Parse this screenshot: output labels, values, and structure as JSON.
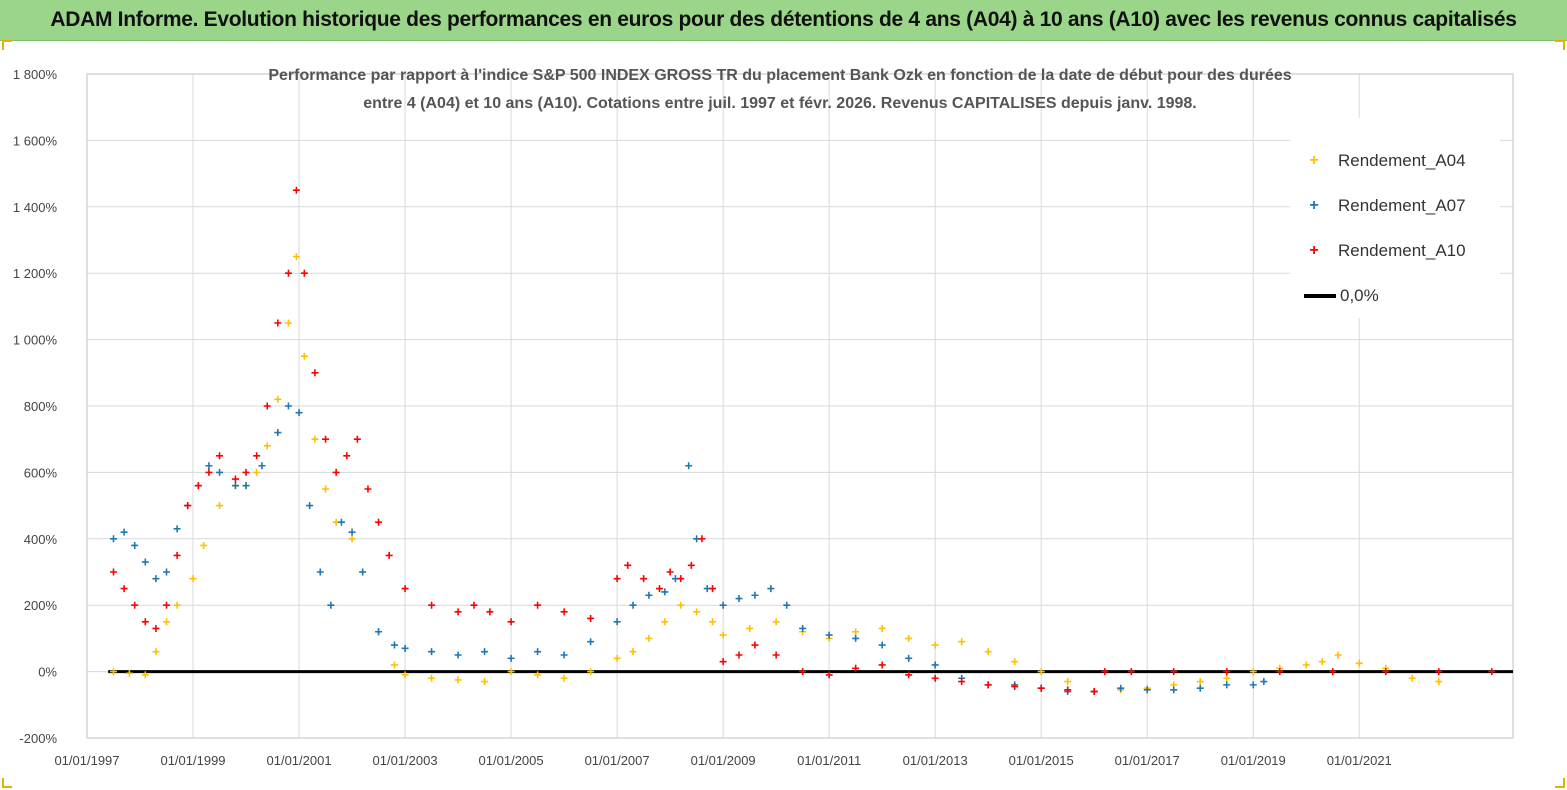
{
  "header": {
    "banner_title": "ADAM Informe. Evolution historique des performances en euros pour des détentions de 4 ans (A04) à 10 ans (A10) avec les revenus connus capitalisés"
  },
  "colors": {
    "banner": "#9bd58a",
    "A04": "#ffc000",
    "A07": "#1f77b4",
    "A10": "#ff0000",
    "zero_line": "#000000",
    "grid": "#d9d9d9"
  },
  "chart_data": {
    "type": "scatter",
    "title_line1": "Performance par rapport à l'indice S&P 500 INDEX GROSS TR  du placement Bank Ozk en fonction de la date de début pour des durées",
    "title_line2": "entre 4 (A04) et 10 ans (A10). Cotations entre juil. 1997 et févr. 2026. Revenus CAPITALISES depuis janv. 1998.",
    "xlabel": "",
    "ylabel": "",
    "ylim": [
      -200,
      1800
    ],
    "xlim": [
      1997.0,
      2023.9
    ],
    "y_ticks": [
      {
        "value": -200,
        "label": "-200%"
      },
      {
        "value": 0,
        "label": "0%"
      },
      {
        "value": 200,
        "label": "200%"
      },
      {
        "value": 400,
        "label": "400%"
      },
      {
        "value": 600,
        "label": "600%"
      },
      {
        "value": 800,
        "label": "800%"
      },
      {
        "value": 1000,
        "label": "1 000%"
      },
      {
        "value": 1200,
        "label": "1 200%"
      },
      {
        "value": 1400,
        "label": "1 400%"
      },
      {
        "value": 1600,
        "label": "1 600%"
      },
      {
        "value": 1800,
        "label": "1 800%"
      }
    ],
    "x_ticks": [
      {
        "value": 1997,
        "label": "01/01/1997"
      },
      {
        "value": 1999,
        "label": "01/01/1999"
      },
      {
        "value": 2001,
        "label": "01/01/2001"
      },
      {
        "value": 2003,
        "label": "01/01/2003"
      },
      {
        "value": 2005,
        "label": "01/01/2005"
      },
      {
        "value": 2007,
        "label": "01/01/2007"
      },
      {
        "value": 2009,
        "label": "01/01/2009"
      },
      {
        "value": 2011,
        "label": "01/01/2011"
      },
      {
        "value": 2013,
        "label": "01/01/2013"
      },
      {
        "value": 2015,
        "label": "01/01/2015"
      },
      {
        "value": 2017,
        "label": "01/01/2017"
      },
      {
        "value": 2019,
        "label": "01/01/2019"
      },
      {
        "value": 2021,
        "label": "01/01/2021"
      }
    ],
    "grid": true,
    "legend_position": "top-right",
    "series": [
      {
        "name": "Rendement_A04",
        "key": "A04",
        "x": [
          1997.5,
          1997.8,
          1998.1,
          1998.3,
          1998.5,
          1998.7,
          1999.0,
          1999.2,
          1999.5,
          1999.8,
          2000.0,
          2000.2,
          2000.4,
          2000.6,
          2000.8,
          2000.95,
          2001.1,
          2001.3,
          2001.5,
          2001.7,
          2002.0,
          2002.2,
          2002.5,
          2002.8,
          2003.0,
          2003.5,
          2004.0,
          2004.5,
          2005.0,
          2005.5,
          2006.0,
          2006.5,
          2007.0,
          2007.3,
          2007.6,
          2007.9,
          2008.2,
          2008.5,
          2008.8,
          2009.0,
          2009.5,
          2010.0,
          2010.5,
          2011.0,
          2011.5,
          2012.0,
          2012.5,
          2013.0,
          2013.5,
          2014.0,
          2014.5,
          2015.0,
          2015.5,
          2016.0,
          2016.5,
          2017.0,
          2017.5,
          2018.0,
          2018.5,
          2019.0,
          2019.5,
          2020.0,
          2020.3,
          2020.6,
          2021.0,
          2021.5,
          2022.0,
          2022.5
        ],
        "values": [
          0,
          -5,
          -10,
          60,
          150,
          200,
          280,
          380,
          500,
          560,
          560,
          600,
          680,
          820,
          1050,
          1250,
          950,
          700,
          550,
          450,
          400,
          300,
          120,
          20,
          -10,
          -20,
          -25,
          -30,
          0,
          -10,
          -20,
          0,
          40,
          60,
          100,
          150,
          200,
          180,
          150,
          110,
          130,
          150,
          120,
          100,
          120,
          130,
          100,
          80,
          90,
          60,
          30,
          0,
          -30,
          -60,
          -55,
          -50,
          -40,
          -30,
          -20,
          0,
          10,
          20,
          30,
          50,
          25,
          10,
          -20,
          -30
        ]
      },
      {
        "name": "Rendement_A07",
        "key": "A07",
        "x": [
          1997.5,
          1997.7,
          1997.9,
          1998.1,
          1998.3,
          1998.5,
          1998.7,
          1998.9,
          1999.1,
          1999.3,
          1999.5,
          1999.8,
          2000.0,
          2000.3,
          2000.6,
          2000.8,
          2001.0,
          2001.2,
          2001.4,
          2001.6,
          2001.8,
          2002.0,
          2002.2,
          2002.5,
          2002.8,
          2003.0,
          2003.5,
          2004.0,
          2004.5,
          2005.0,
          2005.5,
          2006.0,
          2006.5,
          2007.0,
          2007.3,
          2007.6,
          2007.9,
          2008.1,
          2008.35,
          2008.5,
          2008.7,
          2009.0,
          2009.3,
          2009.6,
          2009.9,
          2010.2,
          2010.5,
          2011.0,
          2011.5,
          2012.0,
          2012.5,
          2013.0,
          2013.5,
          2014.0,
          2014.5,
          2015.0,
          2015.5,
          2016.0,
          2016.5,
          2017.0,
          2017.5,
          2018.0,
          2018.5,
          2019.0,
          2019.2
        ],
        "values": [
          400,
          420,
          380,
          330,
          280,
          300,
          430,
          500,
          560,
          620,
          600,
          560,
          560,
          620,
          720,
          800,
          780,
          500,
          300,
          200,
          450,
          420,
          300,
          120,
          80,
          70,
          60,
          50,
          60,
          40,
          60,
          50,
          90,
          150,
          200,
          230,
          240,
          280,
          620,
          400,
          250,
          200,
          220,
          230,
          250,
          200,
          130,
          110,
          100,
          80,
          40,
          20,
          -20,
          -40,
          -40,
          -50,
          -60,
          -60,
          -50,
          -55,
          -55,
          -50,
          -40,
          -40,
          -30
        ]
      },
      {
        "name": "Rendement_A10",
        "key": "A10",
        "x": [
          1997.5,
          1997.7,
          1997.9,
          1998.1,
          1998.3,
          1998.5,
          1998.7,
          1998.9,
          1999.1,
          1999.3,
          1999.5,
          1999.8,
          2000.0,
          2000.2,
          2000.4,
          2000.6,
          2000.8,
          2000.95,
          2001.1,
          2001.3,
          2001.5,
          2001.7,
          2001.9,
          2002.1,
          2002.3,
          2002.5,
          2002.7,
          2003.0,
          2003.5,
          2004.0,
          2004.3,
          2004.6,
          2005.0,
          2005.5,
          2006.0,
          2006.5,
          2007.0,
          2007.2,
          2007.5,
          2007.8,
          2008.0,
          2008.2,
          2008.4,
          2008.6,
          2008.8,
          2009.0,
          2009.3,
          2009.6,
          2010.0,
          2010.5,
          2011.0,
          2011.5,
          2012.0,
          2012.5,
          2013.0,
          2013.5,
          2014.0,
          2014.5,
          2015.0,
          2015.5,
          2016.0,
          2016.2,
          2016.7,
          2017.5,
          2018.5,
          2019.5,
          2020.5,
          2021.5,
          2022.5,
          2023.5
        ],
        "values": [
          300,
          250,
          200,
          150,
          130,
          200,
          350,
          500,
          560,
          600,
          650,
          580,
          600,
          650,
          800,
          1050,
          1200,
          1450,
          1200,
          900,
          700,
          600,
          650,
          700,
          550,
          450,
          350,
          250,
          200,
          180,
          200,
          180,
          150,
          200,
          180,
          160,
          280,
          320,
          280,
          250,
          300,
          280,
          320,
          400,
          250,
          30,
          50,
          80,
          50,
          0,
          -10,
          10,
          20,
          -10,
          -20,
          -30,
          -40,
          -45,
          -50,
          -55,
          -60,
          0,
          0,
          0,
          0,
          0,
          0,
          0,
          0,
          0
        ]
      }
    ],
    "zero_line": {
      "name": "0,0%",
      "value": 0,
      "x_start": 1997.4,
      "x_end": 2023.9
    }
  },
  "legend": {
    "items": [
      {
        "label": "Rendement_A04",
        "marker": "+",
        "color": "#ffc000"
      },
      {
        "label": "Rendement_A07",
        "marker": "+",
        "color": "#1f77b4"
      },
      {
        "label": "Rendement_A10",
        "marker": "+",
        "color": "#ff0000"
      },
      {
        "label": "0,0%",
        "marker": "line",
        "color": "#000000"
      }
    ]
  }
}
